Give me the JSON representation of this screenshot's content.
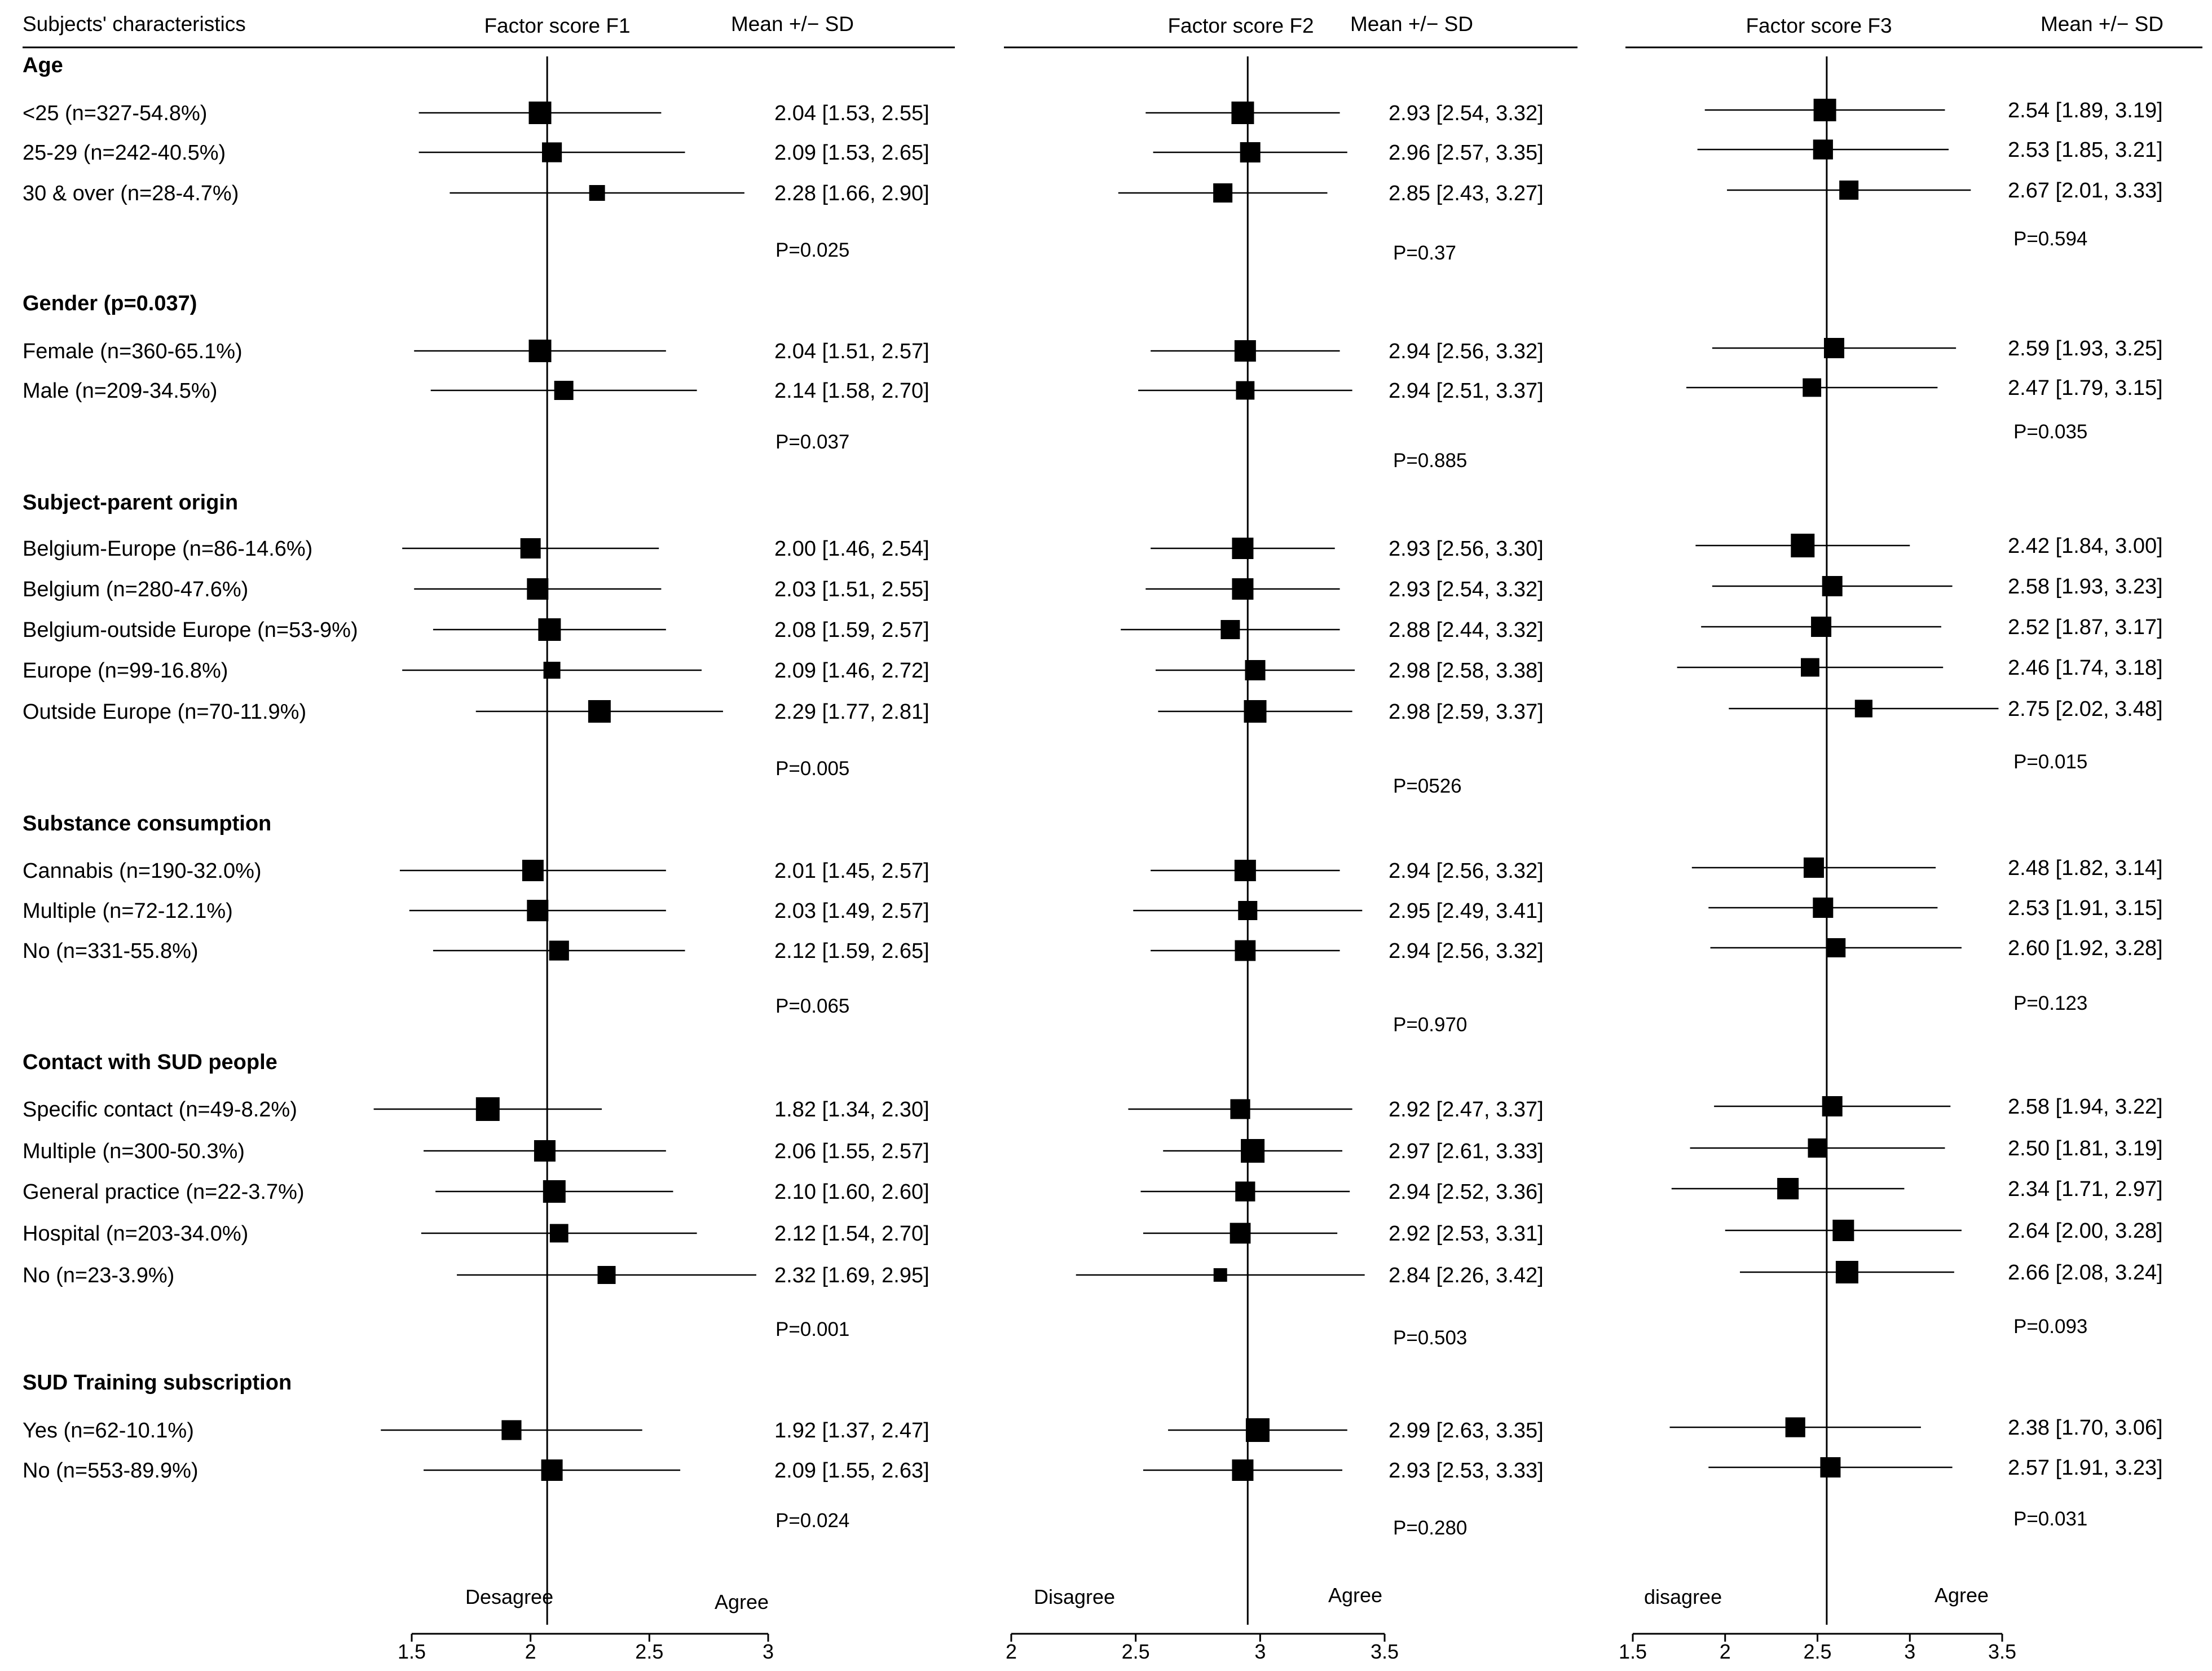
{
  "chart_data": {
    "type": "forest",
    "header": {
      "characteristics": "Subjects' characteristics",
      "panels": [
        "Factor score F1",
        "Factor score F2",
        "Factor score F3"
      ],
      "stat": "Mean +/− SD"
    },
    "groups": [
      {
        "title": "Age",
        "rows": [
          {
            "label": "<25 (n=327-54.8%)",
            "f1": [
              2.04,
              1.53,
              2.55
            ],
            "f2": [
              2.93,
              2.54,
              3.32
            ],
            "f3": [
              2.54,
              1.89,
              3.19
            ],
            "t1": "2.04 [1.53, 2.55]",
            "t2": "2.93 [2.54, 3.32]",
            "t3": "2.54 [1.89, 3.19]",
            "w": [
              1.0,
              1.0,
              1.0
            ]
          },
          {
            "label": "25-29 (n=242-40.5%)",
            "f1": [
              2.09,
              1.53,
              2.65
            ],
            "f2": [
              2.96,
              2.57,
              3.35
            ],
            "f3": [
              2.53,
              1.85,
              3.21
            ],
            "t1": "2.09 [1.53, 2.65]",
            "t2": "2.96 [2.57, 3.35]",
            "t3": "2.53 [1.85, 3.21]",
            "w": [
              0.88,
              0.9,
              0.88
            ]
          },
          {
            "label": "30 & over (n=28-4.7%)",
            "f1": [
              2.28,
              1.66,
              2.9
            ],
            "f2": [
              2.85,
              2.43,
              3.27
            ],
            "f3": [
              2.67,
              2.01,
              3.33
            ],
            "t1": "2.28 [1.66, 2.90]",
            "t2": "2.85 [2.43, 3.27]",
            "t3": "2.67 [2.01, 3.33]",
            "w": [
              0.7,
              0.85,
              0.85
            ]
          }
        ],
        "p": [
          "P=0.025",
          "P=0.37",
          "P=0.594"
        ]
      },
      {
        "title": "Gender (p=0.037)",
        "rows": [
          {
            "label": "Female (n=360-65.1%)",
            "f1": [
              2.04,
              1.51,
              2.57
            ],
            "f2": [
              2.94,
              2.56,
              3.32
            ],
            "f3": [
              2.59,
              1.93,
              3.25
            ],
            "t1": "2.04 [1.51, 2.57]",
            "t2": "2.94 [2.56, 3.32]",
            "t3": "2.59 [1.93, 3.25]",
            "w": [
              1.0,
              0.95,
              0.9
            ]
          },
          {
            "label": "Male (n=209-34.5%)",
            "f1": [
              2.14,
              1.58,
              2.7
            ],
            "f2": [
              2.94,
              2.51,
              3.37
            ],
            "f3": [
              2.47,
              1.79,
              3.15
            ],
            "t1": "2.14 [1.58, 2.70]",
            "t2": "2.94 [2.51, 3.37]",
            "t3": "2.47 [1.79, 3.15]",
            "w": [
              0.85,
              0.82,
              0.82
            ]
          }
        ],
        "p": [
          "P=0.037",
          "P=0.885",
          "P=0.035"
        ]
      },
      {
        "title": "Subject-parent origin",
        "rows": [
          {
            "label": "Belgium-Europe (n=86-14.6%)",
            "f1": [
              2.0,
              1.46,
              2.54
            ],
            "f2": [
              2.93,
              2.56,
              3.3
            ],
            "f3": [
              2.42,
              1.84,
              3.0
            ],
            "t1": "2.00 [1.46, 2.54]",
            "t2": "2.93 [2.56, 3.30]",
            "t3": "2.42 [1.84, 3.00]",
            "w": [
              0.9,
              0.95,
              1.05
            ]
          },
          {
            "label": "Belgium (n=280-47.6%)",
            "f1": [
              2.03,
              1.51,
              2.55
            ],
            "f2": [
              2.93,
              2.54,
              3.32
            ],
            "f3": [
              2.58,
              1.93,
              3.23
            ],
            "t1": "2.03 [1.51, 2.55]",
            "t2": "2.93 [2.54, 3.32]",
            "t3": "2.58 [1.93, 3.23]",
            "w": [
              0.95,
              0.95,
              0.9
            ]
          },
          {
            "label": "Belgium-outside Europe (n=53-9%)",
            "f1": [
              2.08,
              1.59,
              2.57
            ],
            "f2": [
              2.88,
              2.44,
              3.32
            ],
            "f3": [
              2.52,
              1.87,
              3.17
            ],
            "t1": "2.08 [1.59, 2.57]",
            "t2": "2.88 [2.44, 3.32]",
            "t3": "2.52 [1.87, 3.17]",
            "w": [
              1.0,
              0.85,
              0.9
            ]
          },
          {
            "label": "Europe (n=99-16.8%)",
            "f1": [
              2.09,
              1.46,
              2.72
            ],
            "f2": [
              2.98,
              2.58,
              3.38
            ],
            "f3": [
              2.46,
              1.74,
              3.18
            ],
            "t1": "2.09 [1.46, 2.72]",
            "t2": "2.98 [2.58, 3.38]",
            "t3": "2.46 [1.74, 3.18]",
            "w": [
              0.75,
              0.9,
              0.82
            ]
          },
          {
            "label": "Outside Europe (n=70-11.9%)",
            "f1": [
              2.29,
              1.77,
              2.81
            ],
            "f2": [
              2.98,
              2.59,
              3.37
            ],
            "f3": [
              2.75,
              2.02,
              3.48
            ],
            "t1": "2.29 [1.77, 2.81]",
            "t2": "2.98 [2.59, 3.37]",
            "t3": "2.75 [2.02, 3.48]",
            "w": [
              1.0,
              1.0,
              0.78
            ]
          }
        ],
        "p": [
          "P=0.005",
          "P=0526",
          "P=0.015"
        ]
      },
      {
        "title": "Substance consumption",
        "rows": [
          {
            "label": "Cannabis (n=190-32.0%)",
            "f1": [
              2.01,
              1.45,
              2.57
            ],
            "f2": [
              2.94,
              2.56,
              3.32
            ],
            "f3": [
              2.48,
              1.82,
              3.14
            ],
            "t1": "2.01 [1.45, 2.57]",
            "t2": "2.94 [2.56, 3.32]",
            "t3": "2.48 [1.82, 3.14]",
            "w": [
              0.95,
              0.95,
              0.9
            ]
          },
          {
            "label": "Multiple (n=72-12.1%)",
            "f1": [
              2.03,
              1.49,
              2.57
            ],
            "f2": [
              2.95,
              2.49,
              3.41
            ],
            "f3": [
              2.53,
              1.91,
              3.15
            ],
            "t1": "2.03 [1.49, 2.57]",
            "t2": "2.95 [2.49, 3.41]",
            "t3": "2.53 [1.91, 3.15]",
            "w": [
              0.95,
              0.85,
              0.9
            ]
          },
          {
            "label": "No (n=331-55.8%)",
            "f1": [
              2.12,
              1.59,
              2.65
            ],
            "f2": [
              2.94,
              2.56,
              3.32
            ],
            "f3": [
              2.6,
              1.92,
              3.28
            ],
            "t1": "2.12 [1.59, 2.65]",
            "t2": "2.94 [2.56, 3.32]",
            "t3": "2.60 [1.92, 3.28]",
            "w": [
              0.88,
              0.92,
              0.85
            ]
          }
        ],
        "p": [
          "P=0.065",
          "P=0.970",
          "P=0.123"
        ]
      },
      {
        "title": "Contact with SUD people",
        "rows": [
          {
            "label": "Specific contact (n=49-8.2%)",
            "f1": [
              1.82,
              1.34,
              2.3
            ],
            "f2": [
              2.92,
              2.47,
              3.37
            ],
            "f3": [
              2.58,
              1.94,
              3.22
            ],
            "t1": "1.82 [1.34, 2.30]",
            "t2": "2.92 [2.47, 3.37]",
            "t3": "2.58 [1.94, 3.22]",
            "w": [
              1.05,
              0.88,
              0.9
            ]
          },
          {
            "label": "Multiple (n=300-50.3%)",
            "f1": [
              2.06,
              1.55,
              2.57
            ],
            "f2": [
              2.97,
              2.61,
              3.33
            ],
            "f3": [
              2.5,
              1.81,
              3.19
            ],
            "t1": "2.06 [1.55, 2.57]",
            "t2": "2.97 [2.61, 3.33]",
            "t3": "2.50 [1.81, 3.19]",
            "w": [
              0.95,
              1.05,
              0.85
            ]
          },
          {
            "label": "General practice (n=22-3.7%)",
            "f1": [
              2.1,
              1.6,
              2.6
            ],
            "f2": [
              2.94,
              2.52,
              3.36
            ],
            "f3": [
              2.34,
              1.71,
              2.97
            ],
            "t1": "2.10 [1.60, 2.60]",
            "t2": "2.94 [2.52, 3.36]",
            "t3": "2.34 [1.71, 2.97]",
            "w": [
              1.0,
              0.88,
              0.95
            ]
          },
          {
            "label": "Hospital (n=203-34.0%)",
            "f1": [
              2.12,
              1.54,
              2.7
            ],
            "f2": [
              2.92,
              2.53,
              3.31
            ],
            "f3": [
              2.64,
              2.0,
              3.28
            ],
            "t1": "2.12 [1.54, 2.70]",
            "t2": "2.92 [2.53, 3.31]",
            "t3": "2.64 [2.00, 3.28]",
            "w": [
              0.82,
              0.92,
              0.95
            ]
          },
          {
            "label": "No (n=23-3.9%)",
            "f1": [
              2.32,
              1.69,
              2.95
            ],
            "f2": [
              2.84,
              2.26,
              3.42
            ],
            "f3": [
              2.66,
              2.08,
              3.24
            ],
            "t1": "2.32 [1.69, 2.95]",
            "t2": "2.84 [2.26, 3.42]",
            "t3": "2.66 [2.08, 3.24]",
            "w": [
              0.8,
              0.6,
              1.0
            ]
          }
        ],
        "p": [
          "P=0.001",
          "P=0.503",
          "P=0.093"
        ]
      },
      {
        "title": "SUD Training subscription",
        "rows": [
          {
            "label": "Yes (n=62-10.1%)",
            "f1": [
              1.92,
              1.37,
              2.47
            ],
            "f2": [
              2.99,
              2.63,
              3.35
            ],
            "f3": [
              2.38,
              1.7,
              3.06
            ],
            "t1": "1.92 [1.37, 2.47]",
            "t2": "2.99 [2.63, 3.35]",
            "t3": "2.38 [1.70, 3.06]",
            "w": [
              0.88,
              1.05,
              0.88
            ]
          },
          {
            "label": "No (n=553-89.9%)",
            "f1": [
              2.09,
              1.55,
              2.63
            ],
            "f2": [
              2.93,
              2.53,
              3.33
            ],
            "f3": [
              2.57,
              1.91,
              3.23
            ],
            "t1": "2.09 [1.55, 2.63]",
            "t2": "2.93 [2.53, 3.33]",
            "t3": "2.57 [1.91, 3.23]",
            "w": [
              0.95,
              0.95,
              0.9
            ]
          }
        ],
        "p": [
          "P=0.024",
          "P=0.280",
          "P=0.031"
        ]
      }
    ],
    "axes": [
      {
        "min": 1.5,
        "max": 3.0,
        "ref": 2.07,
        "ticks": [
          1.5,
          2.0,
          2.5,
          3.0
        ],
        "tick_labels": [
          "1.5",
          "2",
          "2.5",
          "3"
        ],
        "left_label": "Desagree",
        "right_label": "Agree"
      },
      {
        "min": 2.0,
        "max": 3.5,
        "ref": 2.95,
        "ticks": [
          2.0,
          2.5,
          3.0,
          3.5
        ],
        "tick_labels": [
          "2",
          "2.5",
          "3",
          "3.5"
        ],
        "left_label": "Disagree",
        "right_label": "Agree"
      },
      {
        "min": 1.5,
        "max": 3.5,
        "ref": 2.55,
        "ticks": [
          1.5,
          2.0,
          2.5,
          3.0,
          3.5
        ],
        "tick_labels": [
          "1.5",
          "2",
          "2.5",
          "3",
          "3.5"
        ],
        "left_label": "disagree",
        "right_label": "Agree"
      }
    ]
  }
}
